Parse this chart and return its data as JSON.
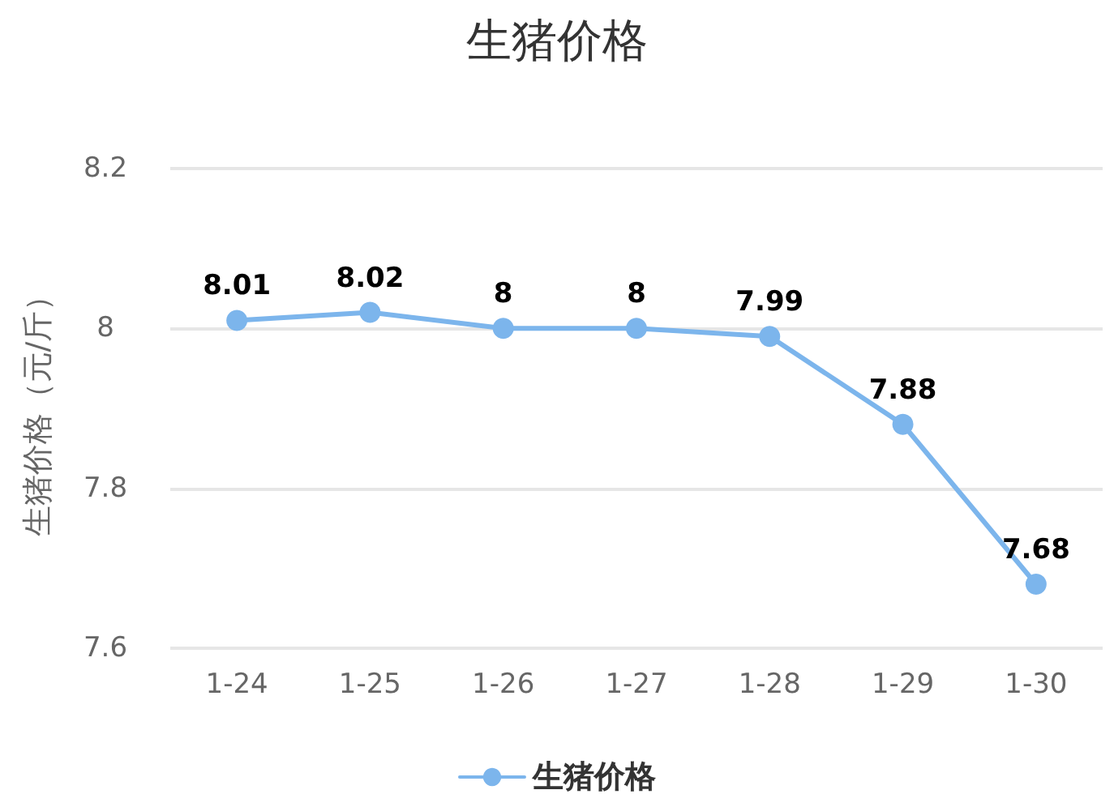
{
  "chart_data": {
    "type": "line",
    "title": "生猪价格",
    "ylabel": "生猪价格（元/斤）",
    "categories": [
      "1-24",
      "1-25",
      "1-26",
      "1-27",
      "1-28",
      "1-29",
      "1-30"
    ],
    "series": [
      {
        "name": "生猪价格",
        "color": "#7cb5ec",
        "values": [
          8.01,
          8.02,
          8,
          8,
          7.99,
          7.88,
          7.68
        ]
      }
    ],
    "ylim": [
      7.6,
      8.2
    ],
    "yticks": [
      7.6,
      7.8,
      8,
      8.2
    ],
    "grid": "y",
    "legend": "bottom",
    "marker": "circle",
    "line_style": "solid",
    "data_labels": true
  }
}
